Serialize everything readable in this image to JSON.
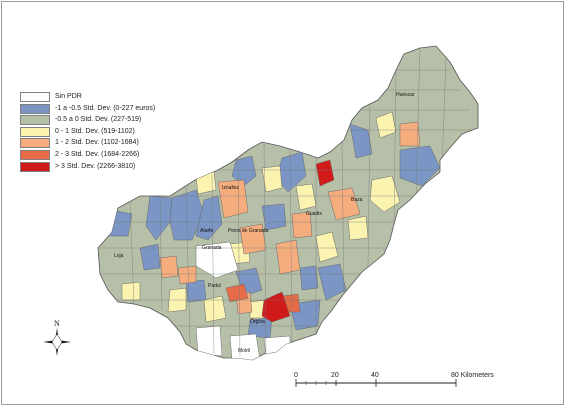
{
  "legend": {
    "items": [
      {
        "label": "Sin PDR",
        "color": "#ffffff"
      },
      {
        "label": "-1 a -0.5 Std. Dev. (0-227 euros)",
        "color": "#7b95c4"
      },
      {
        "label": "-0.5 a 0 Std. Dev. (227-519)",
        "color": "#b6c0a8"
      },
      {
        "label": "0 - 1 Std. Dev. (519-1102)",
        "color": "#fbf3b0"
      },
      {
        "label": "1 - 2 Std. Dev. (1102-1684)",
        "color": "#f5ad7e"
      },
      {
        "label": "2 - 3 Std. Dev. (1684-2266)",
        "color": "#e66b48"
      },
      {
        "label": "> 3 Std. Dev. (2266-3810)",
        "color": "#d11a1a"
      }
    ]
  },
  "towns": {
    "huescar": "Huéscar",
    "iznalloz": "Iznalloz",
    "guadix": "Guadix",
    "baza": "Baza",
    "atarfe": "Atarfe",
    "pinos": "Pinos de Granada",
    "granada": "Granada",
    "loja": "Loja",
    "padul": "Padul",
    "orgiva": "Órgiva",
    "motril": "Motril"
  },
  "scale": {
    "ticks": [
      "0",
      "20",
      "40",
      "80 Kilometers"
    ]
  },
  "north": {
    "label": "N"
  }
}
